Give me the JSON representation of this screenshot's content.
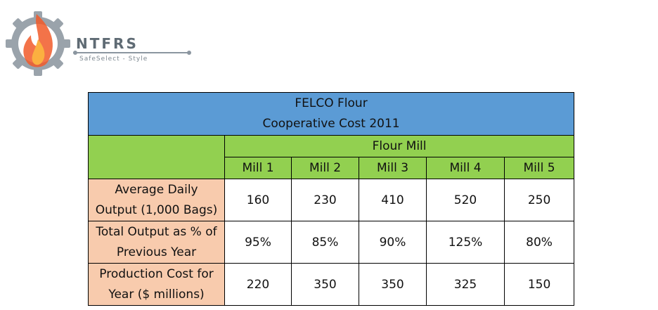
{
  "logo": {
    "name": "NTFRS",
    "tagline": "SafeSelect - Style",
    "colors": {
      "gear": "#9aa3ab",
      "flame_outer": "#f15a29",
      "flame_inner": "#fbb040",
      "text": "#5f6b74"
    }
  },
  "table": {
    "title_line1": "FELCO Flour",
    "title_line2": "Cooperative Cost 2011",
    "group_header": "Flour Mill",
    "columns": [
      "Mill 1",
      "Mill 2",
      "Mill 3",
      "Mill 4",
      "Mill 5"
    ],
    "rows": [
      {
        "label_line1": "Average Daily",
        "label_line2": "Output (1,000 Bags)",
        "values": [
          "160",
          "230",
          "410",
          "520",
          "250"
        ]
      },
      {
        "label_line1": "Total Output as % of",
        "label_line2": "Previous Year",
        "values": [
          "95%",
          "85%",
          "90%",
          "125%",
          "80%"
        ]
      },
      {
        "label_line1": "Production Cost for",
        "label_line2": "Year ($ millions)",
        "values": [
          "220",
          "350",
          "350",
          "325",
          "150"
        ]
      }
    ],
    "colors": {
      "title_bg": "#5b9bd5",
      "header_bg": "#92d050",
      "row_label_bg": "#f8cbad"
    }
  }
}
